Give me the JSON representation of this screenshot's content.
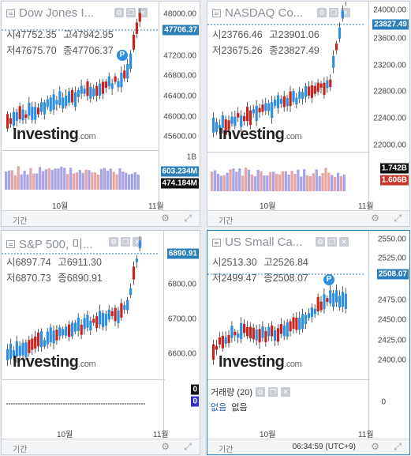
{
  "panels": [
    {
      "title": "Dow Jones I...",
      "ohlc": {
        "open_label": "시",
        "open": "47752.35",
        "high_label": "고",
        "high": "47942.95",
        "low_label": "저",
        "low": "47675.70",
        "close_label": "종",
        "close": "47706.37"
      },
      "y_ticks": [
        "48000.00",
        "47200.00",
        "46800.00",
        "46400.00",
        "46000.00",
        "45600.00"
      ],
      "last_price": "47706.37",
      "volume_ticks": [
        "1B"
      ],
      "volume_badges": [
        "603.234M",
        "474.184M"
      ],
      "x_labels": [
        "10월",
        "11월"
      ],
      "marker": "P",
      "footer_label": "기간"
    },
    {
      "title": "NASDAQ Co...",
      "ohlc": {
        "open_label": "시",
        "open": "23766.46",
        "high_label": "고",
        "high": "23901.06",
        "low_label": "저",
        "low": "23675.26",
        "close_label": "종",
        "close": "23827.49"
      },
      "y_ticks": [
        "24000.00",
        "23600.00",
        "23200.00",
        "22800.00",
        "22400.00",
        "22000.00"
      ],
      "last_price": "23827.49",
      "volume_badges": [
        "1.742B",
        "1.606B"
      ],
      "x_labels": [
        "10월",
        "11월"
      ],
      "footer_label": "기간"
    },
    {
      "title": "S&P 500, 미...",
      "ohlc": {
        "open_label": "시",
        "open": "6897.74",
        "high_label": "고",
        "high": "6911.30",
        "low_label": "저",
        "low": "6870.73",
        "close_label": "종",
        "close": "6890.91"
      },
      "y_ticks": [
        "6800.00",
        "6700.00",
        "6600.00"
      ],
      "last_price": "6890.91",
      "volume_badges": [
        "0",
        "0"
      ],
      "x_labels": [
        "10월",
        "11월"
      ],
      "footer_label": "기간"
    },
    {
      "title": "US Small Ca...",
      "ohlc": {
        "open_label": "시",
        "open": "2513.30",
        "high_label": "고",
        "high": "2526.84",
        "low_label": "저",
        "low": "2499.47",
        "close_label": "종",
        "close": "2508.07"
      },
      "y_ticks": [
        "2550.00",
        "2525.00",
        "2475.00",
        "2450.00",
        "2425.00",
        "2400.00"
      ],
      "last_price": "2508.07",
      "volume_title": "거래량 (20)",
      "volume_value_label": "없음",
      "volume_value": "없음",
      "volume_ticks": [
        "0"
      ],
      "marker": "P",
      "x_labels": [
        "10월",
        "11월"
      ],
      "footer_label": "기간",
      "time": "06:34:59 (UTC+9)"
    }
  ],
  "logo": {
    "text": "Investing",
    "suffix": ".com"
  },
  "colors": {
    "up": "#2e8fe0",
    "down": "#c8241f",
    "accent": "#2b7fb8",
    "vol_up": "#a7a5e6",
    "vol_down": "#e6a6a4"
  }
}
